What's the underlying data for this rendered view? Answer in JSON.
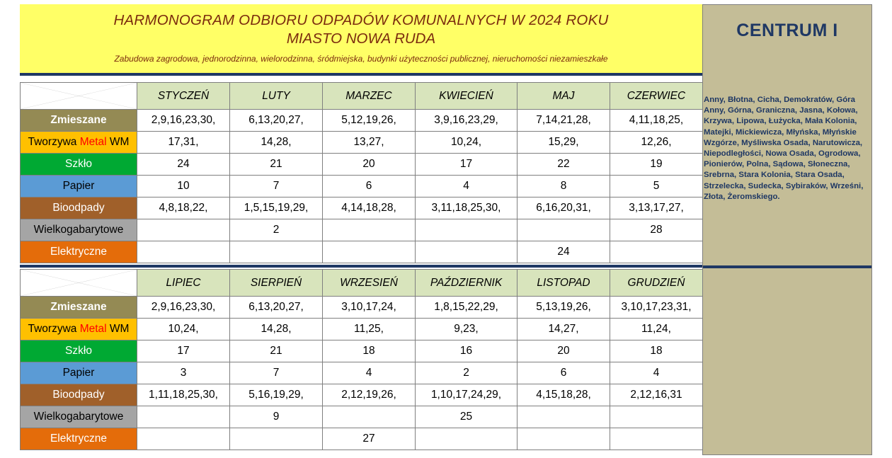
{
  "header": {
    "title_line1": "HARMONOGRAM ODBIORU  ODPADÓW  KOMUNALNYCH  W 2024 ROKU",
    "title_line2": "MIASTO NOWA RUDA",
    "subtitle": "Zabudowa zagrodowa, jednorodzinna, wielorodzinna, śródmiejska, budynki użyteczności publicznej, nieruchomości niezamieszkałe"
  },
  "sidebar": {
    "title": "CENTRUM  I",
    "streets": "Anny, Błotna, Cicha, Demokratów, Góra Anny, Górna, Graniczna, Jasna, Kołowa, Krzywa, Lipowa, Łużycka, Mała Kolonia, Matejki, Mickiewicza, Młyńska, Młyńskie Wzgórze, Myśliwska Osada, Narutowicza, Niepodległości, Nowa Osada, Ogrodowa, Pionierów, Polna, Sądowa, Słoneczna, Srebrna, Stara Kolonia, Stara Osada, Strzelecka, Sudecka, Sybiraków, Wrześni, Złota, Żeromskiego."
  },
  "categories": {
    "zmieszane": "Zmieszane",
    "tworzywa_pre": "Tworzywa ",
    "tworzywa_metal": "Metal",
    "tworzywa_post": " WM",
    "szklo": "Szkło",
    "papier": "Papier",
    "bioodpady": "Bioodpady",
    "wielkogabarytowe": "Wielkogabarytowe",
    "elektryczne": "Elektryczne"
  },
  "colors": {
    "zmieszane": "#948a54",
    "tworzywa": "#ffc000",
    "szklo": "#00a933",
    "papier": "#5b9bd5",
    "bioodpady": "#a0602a",
    "wielkogabarytowe": "#a5a5a5",
    "elektryczne": "#e46c0a",
    "header_bg": "#ffff66",
    "sidebar_bg": "#c4bd97",
    "month_bg": "#d8e4bc"
  },
  "h1": {
    "months": [
      "STYCZEŃ",
      "LUTY",
      "MARZEC",
      "KWIECIEŃ",
      "MAJ",
      "CZERWIEC"
    ],
    "zmieszane": [
      "2,9,16,23,30,",
      "6,13,20,27,",
      "5,12,19,26,",
      "3,9,16,23,29,",
      "7,14,21,28,",
      "4,11,18,25,"
    ],
    "tworzywa": [
      "17,31,",
      "14,28,",
      "13,27,",
      "10,24,",
      "15,29,",
      "12,26,"
    ],
    "szklo": [
      "24",
      "21",
      "20",
      "17",
      "22",
      "19"
    ],
    "papier": [
      "10",
      "7",
      "6",
      "4",
      "8",
      "5"
    ],
    "bioodpady": [
      "4,8,18,22,",
      "1,5,15,19,29,",
      "4,14,18,28,",
      "3,11,18,25,30,",
      "6,16,20,31,",
      "3,13,17,27,"
    ],
    "wielkogabarytowe": [
      "",
      "2",
      "",
      "",
      "",
      "28"
    ],
    "elektryczne": [
      "",
      "",
      "",
      "",
      "24",
      ""
    ]
  },
  "h2": {
    "months": [
      "LIPIEC",
      "SIERPIEŃ",
      "WRZESIEŃ",
      "PAŹDZIERNIK",
      "LISTOPAD",
      "GRUDZIEŃ"
    ],
    "zmieszane": [
      "2,9,16,23,30,",
      "6,13,20,27,",
      "3,10,17,24,",
      "1,8,15,22,29,",
      "5,13,19,26,",
      "3,10,17,23,31,"
    ],
    "tworzywa": [
      "10,24,",
      "14,28,",
      "11,25,",
      "9,23,",
      "14,27,",
      "11,24,"
    ],
    "szklo": [
      "17",
      "21",
      "18",
      "16",
      "20",
      "18"
    ],
    "papier": [
      "3",
      "7",
      "4",
      "2",
      "6",
      "4"
    ],
    "bioodpady": [
      "1,11,18,25,30,",
      "5,16,19,29,",
      "2,12,19,26,",
      "1,10,17,24,29,",
      "4,15,18,28,",
      "2,12,16,31"
    ],
    "wielkogabarytowe": [
      "",
      "9",
      "",
      "25",
      "",
      ""
    ],
    "elektryczne": [
      "",
      "",
      "27",
      "",
      "",
      ""
    ]
  }
}
